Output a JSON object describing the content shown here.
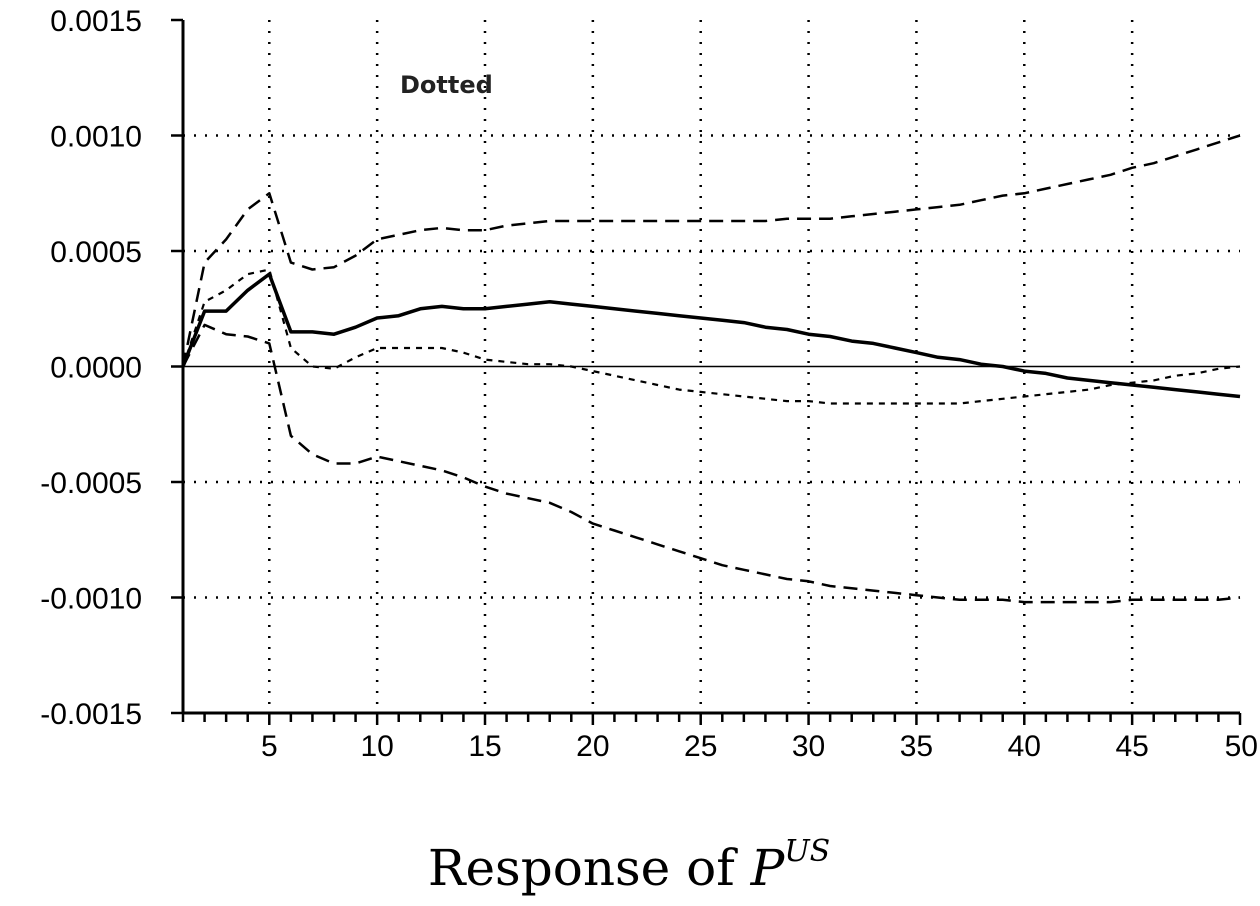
{
  "chart_data": {
    "type": "line",
    "title": {
      "prefix": "Response of ",
      "symbol": "P",
      "superscript": "US"
    },
    "annotation": "Dotted",
    "xlabel": "",
    "ylabel": "",
    "xlim": [
      1,
      50
    ],
    "ylim": [
      -0.0015,
      0.0015
    ],
    "grid": true,
    "x_ticks": [
      5,
      10,
      15,
      20,
      25,
      30,
      35,
      40,
      45,
      50
    ],
    "x_tick_labels": [
      "5",
      "10",
      "15",
      "20",
      "25",
      "30",
      "35",
      "40",
      "45",
      "50"
    ],
    "y_ticks": [
      0.0015,
      0.001,
      0.0005,
      0.0,
      -0.0005,
      -0.001,
      -0.0015
    ],
    "y_tick_labels": [
      "0.0015",
      "0.0010",
      "0.0005",
      "0.0000",
      "-0.0005",
      "-0.0010",
      "-0.0015"
    ],
    "x": [
      1,
      2,
      3,
      4,
      5,
      6,
      7,
      8,
      9,
      10,
      11,
      12,
      13,
      14,
      15,
      16,
      17,
      18,
      19,
      20,
      21,
      22,
      23,
      24,
      25,
      26,
      27,
      28,
      29,
      30,
      31,
      32,
      33,
      34,
      35,
      36,
      37,
      38,
      39,
      40,
      41,
      42,
      43,
      44,
      45,
      46,
      47,
      48,
      49,
      50
    ],
    "series": [
      {
        "style": "solid",
        "values": [
          0.0,
          0.00024,
          0.00024,
          0.00033,
          0.0004,
          0.00015,
          0.00015,
          0.00014,
          0.00017,
          0.00021,
          0.00022,
          0.00025,
          0.00026,
          0.00025,
          0.00025,
          0.00026,
          0.00027,
          0.00028,
          0.00027,
          0.00026,
          0.00025,
          0.00024,
          0.00023,
          0.00022,
          0.00021,
          0.0002,
          0.00019,
          0.00017,
          0.00016,
          0.00014,
          0.00013,
          0.00011,
          0.0001,
          8e-05,
          6e-05,
          4e-05,
          3e-05,
          1e-05,
          0.0,
          -2e-05,
          -3e-05,
          -5e-05,
          -6e-05,
          -7e-05,
          -8e-05,
          -9e-05,
          -0.0001,
          -0.00011,
          -0.00012,
          -0.00013
        ]
      },
      {
        "style": "dashed",
        "values": [
          0.0,
          0.00045,
          0.00055,
          0.00068,
          0.00075,
          0.00045,
          0.00042,
          0.00043,
          0.00048,
          0.00055,
          0.00057,
          0.00059,
          0.0006,
          0.00059,
          0.00059,
          0.00061,
          0.00062,
          0.00063,
          0.00063,
          0.00063,
          0.00063,
          0.00063,
          0.00063,
          0.00063,
          0.00063,
          0.00063,
          0.00063,
          0.00063,
          0.00064,
          0.00064,
          0.00064,
          0.00065,
          0.00066,
          0.00067,
          0.00068,
          0.00069,
          0.0007,
          0.00072,
          0.00074,
          0.00075,
          0.00077,
          0.00079,
          0.00081,
          0.00083,
          0.00086,
          0.00088,
          0.00091,
          0.00094,
          0.00097,
          0.001
        ]
      },
      {
        "style": "dashed",
        "values": [
          0.0,
          0.00018,
          0.00014,
          0.00013,
          0.0001,
          -0.0003,
          -0.00038,
          -0.00042,
          -0.00042,
          -0.00039,
          -0.00041,
          -0.00043,
          -0.00045,
          -0.00048,
          -0.00052,
          -0.00055,
          -0.00057,
          -0.00059,
          -0.00063,
          -0.00068,
          -0.00071,
          -0.00074,
          -0.00077,
          -0.0008,
          -0.00083,
          -0.00086,
          -0.00088,
          -0.0009,
          -0.00092,
          -0.00093,
          -0.00095,
          -0.00096,
          -0.00097,
          -0.00098,
          -0.00099,
          -0.001,
          -0.00101,
          -0.00101,
          -0.00101,
          -0.00102,
          -0.00102,
          -0.00102,
          -0.00102,
          -0.00102,
          -0.00101,
          -0.00101,
          -0.00101,
          -0.00101,
          -0.00101,
          -0.001
        ]
      },
      {
        "style": "dotted",
        "values": [
          0.0,
          0.00028,
          0.00033,
          0.0004,
          0.00042,
          8e-05,
          0.0,
          -1e-05,
          4e-05,
          8e-05,
          8e-05,
          8e-05,
          8e-05,
          6e-05,
          3e-05,
          2e-05,
          1e-05,
          1e-05,
          0.0,
          -2e-05,
          -4e-05,
          -6e-05,
          -8e-05,
          -0.0001,
          -0.00011,
          -0.00012,
          -0.00013,
          -0.00014,
          -0.00015,
          -0.00015,
          -0.00016,
          -0.00016,
          -0.00016,
          -0.00016,
          -0.00016,
          -0.00016,
          -0.00016,
          -0.00015,
          -0.00014,
          -0.00013,
          -0.00012,
          -0.00011,
          -0.0001,
          -8e-05,
          -7e-05,
          -6e-05,
          -4e-05,
          -3e-05,
          -1e-05,
          0.0
        ]
      }
    ]
  }
}
